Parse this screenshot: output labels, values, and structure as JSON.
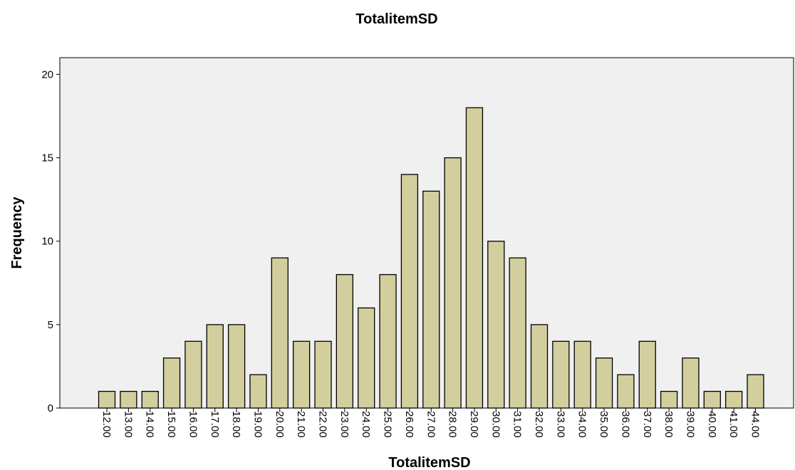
{
  "chart_data": {
    "type": "bar",
    "title": "TotalitemSD",
    "xlabel": "TotalitemSD",
    "ylabel": "Frequency",
    "categories": [
      "12.00",
      "13.00",
      "14.00",
      "15.00",
      "16.00",
      "17.00",
      "18.00",
      "19.00",
      "20.00",
      "21.00",
      "22.00",
      "23.00",
      "24.00",
      "25.00",
      "26.00",
      "27.00",
      "28.00",
      "29.00",
      "30.00",
      "31.00",
      "32.00",
      "33.00",
      "34.00",
      "35.00",
      "36.00",
      "37.00",
      "38.00",
      "39.00",
      "40.00",
      "41.00",
      "44.00"
    ],
    "values": [
      1,
      1,
      1,
      3,
      4,
      5,
      5,
      2,
      9,
      4,
      4,
      8,
      6,
      8,
      14,
      13,
      15,
      18,
      10,
      9,
      5,
      4,
      4,
      3,
      2,
      4,
      1,
      3,
      1,
      1,
      2
    ],
    "ylim": [
      0,
      21
    ],
    "yticks": [
      0,
      5,
      10,
      15,
      20
    ],
    "grid": false,
    "colors": {
      "bar_fill": "#d3ce9d",
      "bar_stroke": "#000000",
      "plot_background": "#f0f0f0"
    }
  }
}
